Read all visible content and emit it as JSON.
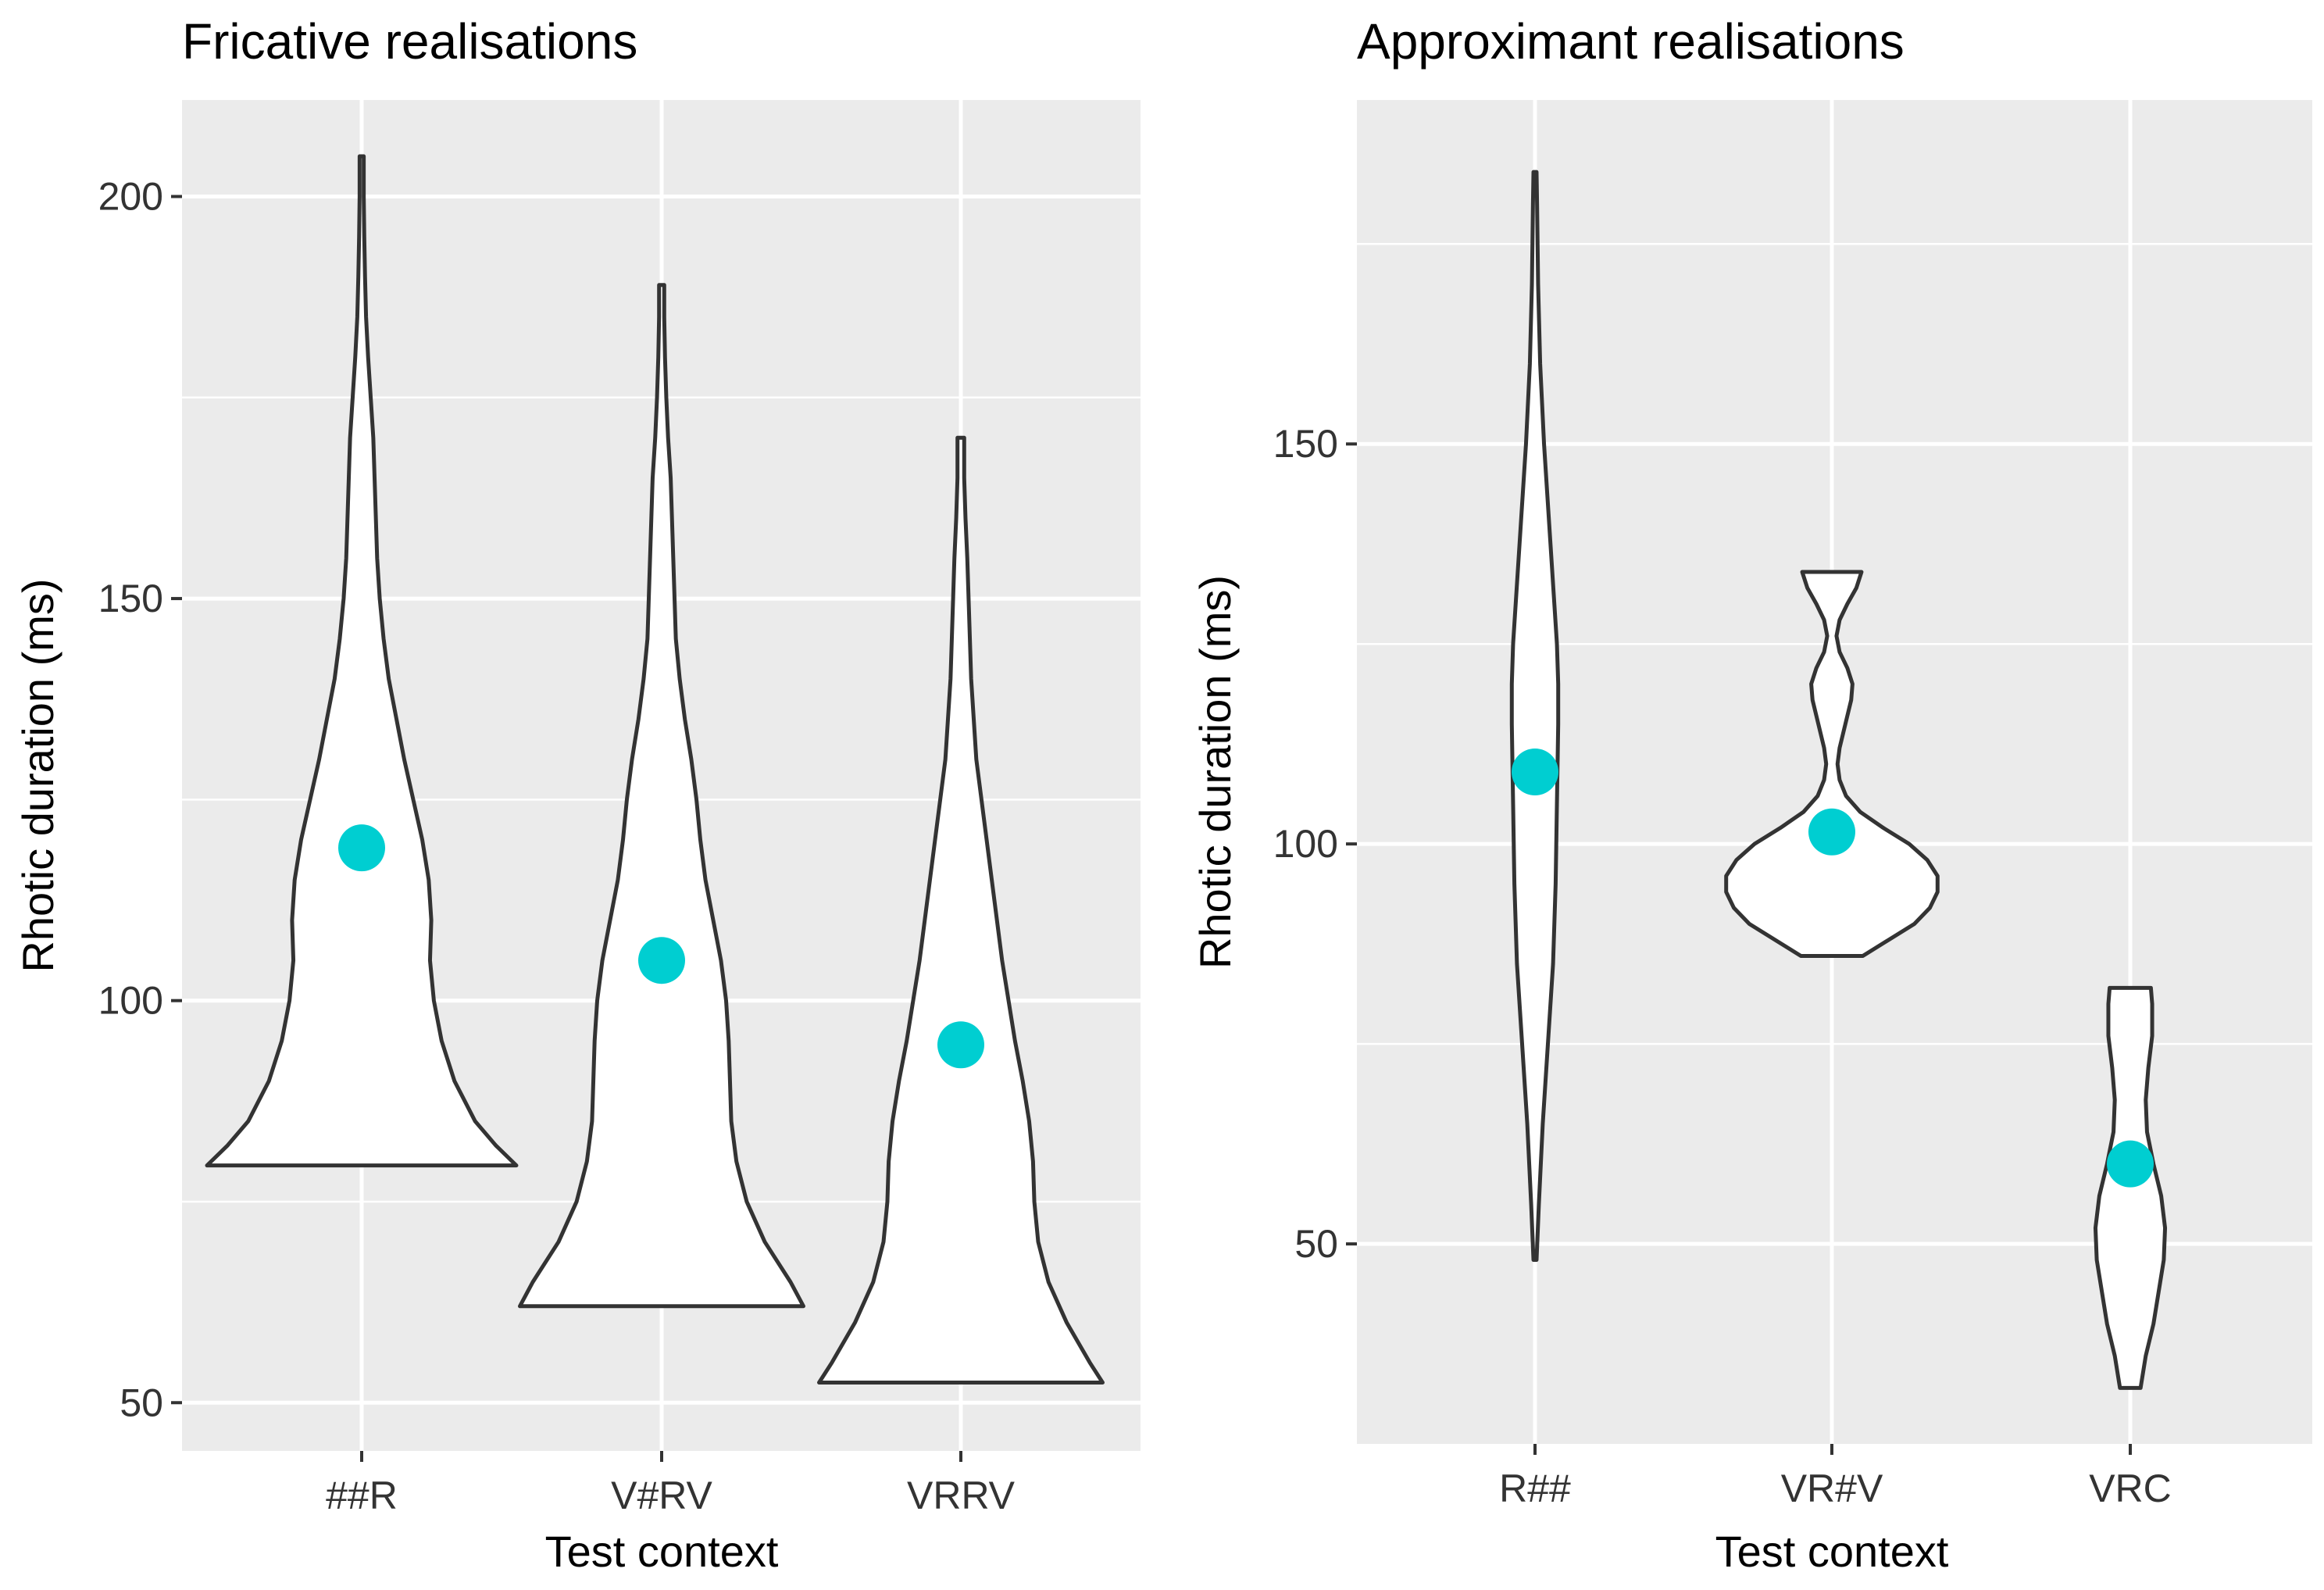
{
  "chart_data": [
    {
      "type": "violin",
      "title": "Fricative realisations",
      "xlabel": "Test context",
      "ylabel": "Rhotic duration (ms)",
      "ylim": [
        44,
        212
      ],
      "yticks": [
        50,
        100,
        150,
        200
      ],
      "yticks_minor": [
        75,
        125,
        175
      ],
      "grid": true,
      "categories": [
        "##R",
        "V#RV",
        "VRRV"
      ],
      "point_color": "#00CED1",
      "violins": [
        {
          "category": "##R",
          "min": 79.5,
          "max": 205,
          "mean": 119,
          "width_profile": [
            [
              79.5,
              0.6
            ],
            [
              82,
              0.52
            ],
            [
              85,
              0.44
            ],
            [
              90,
              0.36
            ],
            [
              95,
              0.31
            ],
            [
              100,
              0.28
            ],
            [
              105,
              0.265
            ],
            [
              110,
              0.27
            ],
            [
              115,
              0.26
            ],
            [
              120,
              0.235
            ],
            [
              125,
              0.2
            ],
            [
              130,
              0.165
            ],
            [
              135,
              0.135
            ],
            [
              140,
              0.105
            ],
            [
              145,
              0.085
            ],
            [
              150,
              0.07
            ],
            [
              155,
              0.06
            ],
            [
              160,
              0.055
            ],
            [
              165,
              0.05
            ],
            [
              170,
              0.045
            ],
            [
              175,
              0.035
            ],
            [
              180,
              0.025
            ],
            [
              185,
              0.017
            ],
            [
              190,
              0.013
            ],
            [
              195,
              0.01
            ],
            [
              200,
              0.008
            ],
            [
              205,
              0.008
            ]
          ]
        },
        {
          "category": "V#RV",
          "min": 62,
          "max": 189,
          "mean": 105,
          "width_profile": [
            [
              62,
              0.55
            ],
            [
              65,
              0.5
            ],
            [
              70,
              0.4
            ],
            [
              75,
              0.33
            ],
            [
              80,
              0.29
            ],
            [
              85,
              0.27
            ],
            [
              90,
              0.265
            ],
            [
              95,
              0.26
            ],
            [
              100,
              0.25
            ],
            [
              105,
              0.23
            ],
            [
              110,
              0.2
            ],
            [
              115,
              0.17
            ],
            [
              120,
              0.15
            ],
            [
              125,
              0.135
            ],
            [
              130,
              0.115
            ],
            [
              135,
              0.09
            ],
            [
              140,
              0.07
            ],
            [
              145,
              0.055
            ],
            [
              150,
              0.05
            ],
            [
              155,
              0.045
            ],
            [
              160,
              0.04
            ],
            [
              165,
              0.035
            ],
            [
              170,
              0.025
            ],
            [
              175,
              0.018
            ],
            [
              180,
              0.013
            ],
            [
              185,
              0.01
            ],
            [
              189,
              0.01
            ]
          ]
        },
        {
          "category": "VRRV",
          "min": 52.5,
          "max": 170,
          "mean": 94.5,
          "width_profile": [
            [
              52.5,
              0.55
            ],
            [
              55,
              0.5
            ],
            [
              60,
              0.41
            ],
            [
              65,
              0.34
            ],
            [
              70,
              0.3
            ],
            [
              75,
              0.285
            ],
            [
              80,
              0.28
            ],
            [
              85,
              0.265
            ],
            [
              90,
              0.24
            ],
            [
              95,
              0.21
            ],
            [
              100,
              0.185
            ],
            [
              105,
              0.16
            ],
            [
              110,
              0.14
            ],
            [
              115,
              0.12
            ],
            [
              120,
              0.1
            ],
            [
              125,
              0.08
            ],
            [
              130,
              0.06
            ],
            [
              135,
              0.05
            ],
            [
              140,
              0.04
            ],
            [
              145,
              0.035
            ],
            [
              150,
              0.03
            ],
            [
              155,
              0.025
            ],
            [
              160,
              0.018
            ],
            [
              165,
              0.013
            ],
            [
              170,
              0.013
            ]
          ]
        }
      ]
    },
    {
      "type": "violin",
      "title": "Approximant realisations",
      "xlabel": "Test context",
      "ylabel": "Rhotic duration (ms)",
      "ylim": [
        25,
        193
      ],
      "yticks": [
        50,
        100,
        150
      ],
      "yticks_minor": [
        75,
        125,
        175
      ],
      "grid": true,
      "categories": [
        "R##",
        "VR#V",
        "VRC"
      ],
      "point_color": "#00CED1",
      "violins": [
        {
          "category": "R##",
          "min": 48,
          "max": 184,
          "mean": 109,
          "width_profile": [
            [
              48,
              0.006
            ],
            [
              55,
              0.015
            ],
            [
              65,
              0.03
            ],
            [
              75,
              0.05
            ],
            [
              85,
              0.07
            ],
            [
              95,
              0.08
            ],
            [
              105,
              0.085
            ],
            [
              115,
              0.09
            ],
            [
              120,
              0.09
            ],
            [
              125,
              0.085
            ],
            [
              130,
              0.075
            ],
            [
              140,
              0.055
            ],
            [
              150,
              0.035
            ],
            [
              160,
              0.02
            ],
            [
              170,
              0.012
            ],
            [
              180,
              0.008
            ],
            [
              184,
              0.006
            ]
          ]
        },
        {
          "category": "VR#V",
          "min": 86,
          "max": 134,
          "mean": 101.5,
          "width_profile": [
            [
              86,
              0.12
            ],
            [
              88,
              0.22
            ],
            [
              90,
              0.32
            ],
            [
              92,
              0.38
            ],
            [
              94,
              0.41
            ],
            [
              96,
              0.41
            ],
            [
              98,
              0.37
            ],
            [
              100,
              0.3
            ],
            [
              102,
              0.2
            ],
            [
              104,
              0.11
            ],
            [
              106,
              0.055
            ],
            [
              108,
              0.03
            ],
            [
              110,
              0.022
            ],
            [
              112,
              0.03
            ],
            [
              114,
              0.045
            ],
            [
              116,
              0.06
            ],
            [
              118,
              0.075
            ],
            [
              120,
              0.08
            ],
            [
              122,
              0.06
            ],
            [
              124,
              0.03
            ],
            [
              126,
              0.018
            ],
            [
              128,
              0.03
            ],
            [
              130,
              0.06
            ],
            [
              132,
              0.095
            ],
            [
              134,
              0.115
            ]
          ]
        },
        {
          "category": "VRC",
          "min": 32,
          "max": 82,
          "mean": 60,
          "width_profile": [
            [
              32,
              0.04
            ],
            [
              36,
              0.06
            ],
            [
              40,
              0.09
            ],
            [
              44,
              0.11
            ],
            [
              48,
              0.13
            ],
            [
              52,
              0.135
            ],
            [
              56,
              0.12
            ],
            [
              60,
              0.09
            ],
            [
              64,
              0.065
            ],
            [
              68,
              0.06
            ],
            [
              72,
              0.07
            ],
            [
              76,
              0.085
            ],
            [
              80,
              0.085
            ],
            [
              82,
              0.08
            ]
          ]
        }
      ]
    }
  ]
}
